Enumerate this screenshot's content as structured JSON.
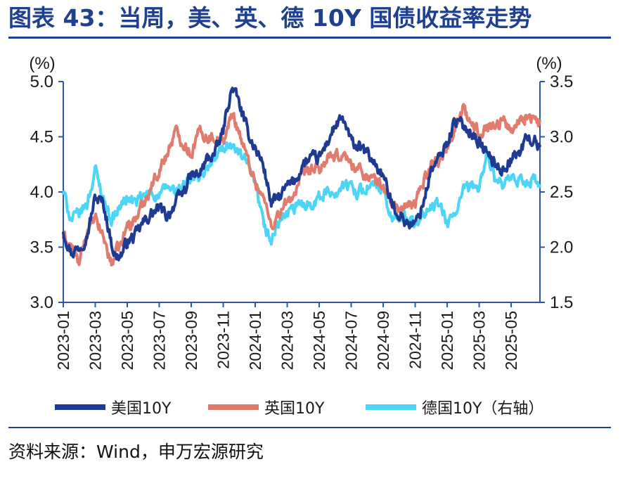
{
  "header": {
    "title": "图表 43：当周，美、英、德 10Y 国债收益率走势"
  },
  "footer": {
    "source": "资料来源：Wind，申万宏源研究"
  },
  "chart_data": {
    "type": "line",
    "title": "图表 43：当周，美、英、德 10Y 国债收益率走势",
    "y_left": {
      "unit_label": "(%)",
      "range": [
        3.0,
        5.0
      ],
      "ticks": [
        "3.0",
        "3.5",
        "4.0",
        "4.5",
        "5.0"
      ]
    },
    "y_right": {
      "unit_label": "(%)",
      "range": [
        1.5,
        3.5
      ],
      "ticks": [
        "1.5",
        "2.0",
        "2.5",
        "3.0",
        "3.5"
      ]
    },
    "x_tick_labels": [
      "2023-01",
      "2023-03",
      "2023-05",
      "2023-07",
      "2023-09",
      "2023-11",
      "2024-01",
      "2024-03",
      "2024-05",
      "2024-07",
      "2024-09",
      "2024-11",
      "2025-01",
      "2025-03",
      "2025-05"
    ],
    "x_range_months": [
      0,
      29.8
    ],
    "series": [
      {
        "name": "美国10Y",
        "axis": "left",
        "color": "#1F3A93",
        "months": [
          0.0,
          0.5,
          1.0,
          1.5,
          2.0,
          2.5,
          3.0,
          3.3,
          3.7,
          4.0,
          4.5,
          5.0,
          5.5,
          6.0,
          6.5,
          7.0,
          7.5,
          8.0,
          8.5,
          9.0,
          9.5,
          10.0,
          10.3,
          10.6,
          11.0,
          11.5,
          12.0,
          12.5,
          13.0,
          13.5,
          14.0,
          14.5,
          15.0,
          15.5,
          16.0,
          16.5,
          17.0,
          17.5,
          18.0,
          18.5,
          19.0,
          19.5,
          20.0,
          20.5,
          21.0,
          21.5,
          22.0,
          22.5,
          23.0,
          23.5,
          24.0,
          24.5,
          25.0,
          25.5,
          26.0,
          26.5,
          27.0,
          27.5,
          28.0,
          28.5,
          29.0,
          29.5,
          29.8
        ],
        "values": [
          3.65,
          3.45,
          3.5,
          3.62,
          3.95,
          3.9,
          3.55,
          3.4,
          3.45,
          3.55,
          3.6,
          3.72,
          3.8,
          3.85,
          3.78,
          3.9,
          4.0,
          4.15,
          4.15,
          4.3,
          4.35,
          4.55,
          4.8,
          4.95,
          4.8,
          4.55,
          4.4,
          4.25,
          3.9,
          3.95,
          4.05,
          4.1,
          4.25,
          4.3,
          4.3,
          4.45,
          4.6,
          4.65,
          4.45,
          4.4,
          4.35,
          4.25,
          4.15,
          3.9,
          3.8,
          3.72,
          3.7,
          3.9,
          4.2,
          4.3,
          4.45,
          4.65,
          4.6,
          4.55,
          4.45,
          4.35,
          4.25,
          4.2,
          4.3,
          4.35,
          4.5,
          4.45,
          4.4
        ]
      },
      {
        "name": "英国10Y",
        "axis": "left",
        "color": "#E07B6E",
        "months": [
          0.0,
          0.5,
          1.0,
          1.5,
          2.0,
          2.5,
          3.0,
          3.3,
          3.7,
          4.0,
          4.5,
          5.0,
          5.5,
          6.0,
          6.5,
          7.0,
          7.5,
          8.0,
          8.5,
          9.0,
          9.5,
          10.0,
          10.3,
          10.6,
          11.0,
          11.5,
          12.0,
          12.5,
          13.0,
          13.5,
          14.0,
          14.5,
          15.0,
          15.5,
          16.0,
          16.5,
          17.0,
          17.5,
          18.0,
          18.5,
          19.0,
          19.5,
          20.0,
          20.5,
          21.0,
          21.5,
          22.0,
          22.5,
          23.0,
          23.5,
          24.0,
          24.5,
          25.0,
          25.5,
          26.0,
          26.5,
          27.0,
          27.5,
          28.0,
          28.5,
          29.0,
          29.5,
          29.8
        ],
        "values": [
          3.6,
          3.5,
          3.35,
          3.65,
          3.75,
          3.6,
          3.35,
          3.45,
          3.55,
          3.7,
          3.75,
          3.9,
          4.05,
          4.2,
          4.35,
          4.55,
          4.45,
          4.35,
          4.55,
          4.5,
          4.5,
          4.45,
          4.6,
          4.7,
          4.55,
          4.3,
          4.1,
          3.95,
          3.7,
          3.8,
          3.9,
          4.0,
          4.15,
          4.2,
          4.2,
          4.3,
          4.3,
          4.35,
          4.25,
          4.2,
          4.15,
          4.1,
          4.05,
          3.9,
          3.85,
          3.85,
          3.9,
          4.1,
          4.25,
          4.3,
          4.4,
          4.6,
          4.75,
          4.6,
          4.55,
          4.6,
          4.6,
          4.65,
          4.55,
          4.65,
          4.7,
          4.65,
          4.6
        ]
      },
      {
        "name": "德国10Y（右轴）",
        "axis": "right",
        "color": "#4DD5F5",
        "months": [
          0.0,
          0.5,
          1.0,
          1.5,
          2.0,
          2.5,
          3.0,
          3.3,
          3.7,
          4.0,
          4.5,
          5.0,
          5.5,
          6.0,
          6.5,
          7.0,
          7.5,
          8.0,
          8.5,
          9.0,
          9.5,
          10.0,
          10.3,
          10.6,
          11.0,
          11.5,
          12.0,
          12.5,
          13.0,
          13.5,
          14.0,
          14.5,
          15.0,
          15.5,
          16.0,
          16.5,
          17.0,
          17.5,
          18.0,
          18.5,
          19.0,
          19.5,
          20.0,
          20.5,
          21.0,
          21.5,
          22.0,
          22.5,
          23.0,
          23.5,
          24.0,
          24.5,
          25.0,
          25.5,
          26.0,
          26.5,
          27.0,
          27.5,
          28.0,
          28.5,
          29.0,
          29.5,
          29.8
        ],
        "values": [
          2.5,
          2.25,
          2.3,
          2.4,
          2.7,
          2.45,
          2.25,
          2.3,
          2.4,
          2.45,
          2.4,
          2.45,
          2.5,
          2.45,
          2.55,
          2.5,
          2.55,
          2.6,
          2.65,
          2.7,
          2.8,
          2.9,
          2.95,
          2.9,
          2.85,
          2.75,
          2.55,
          2.2,
          2.05,
          2.25,
          2.3,
          2.35,
          2.4,
          2.4,
          2.45,
          2.5,
          2.5,
          2.55,
          2.55,
          2.5,
          2.55,
          2.55,
          2.5,
          2.25,
          2.3,
          2.25,
          2.2,
          2.3,
          2.35,
          2.4,
          2.2,
          2.3,
          2.5,
          2.55,
          2.55,
          2.85,
          2.6,
          2.55,
          2.6,
          2.6,
          2.6,
          2.6,
          2.55
        ]
      }
    ],
    "legend": {
      "position": "bottom"
    }
  }
}
